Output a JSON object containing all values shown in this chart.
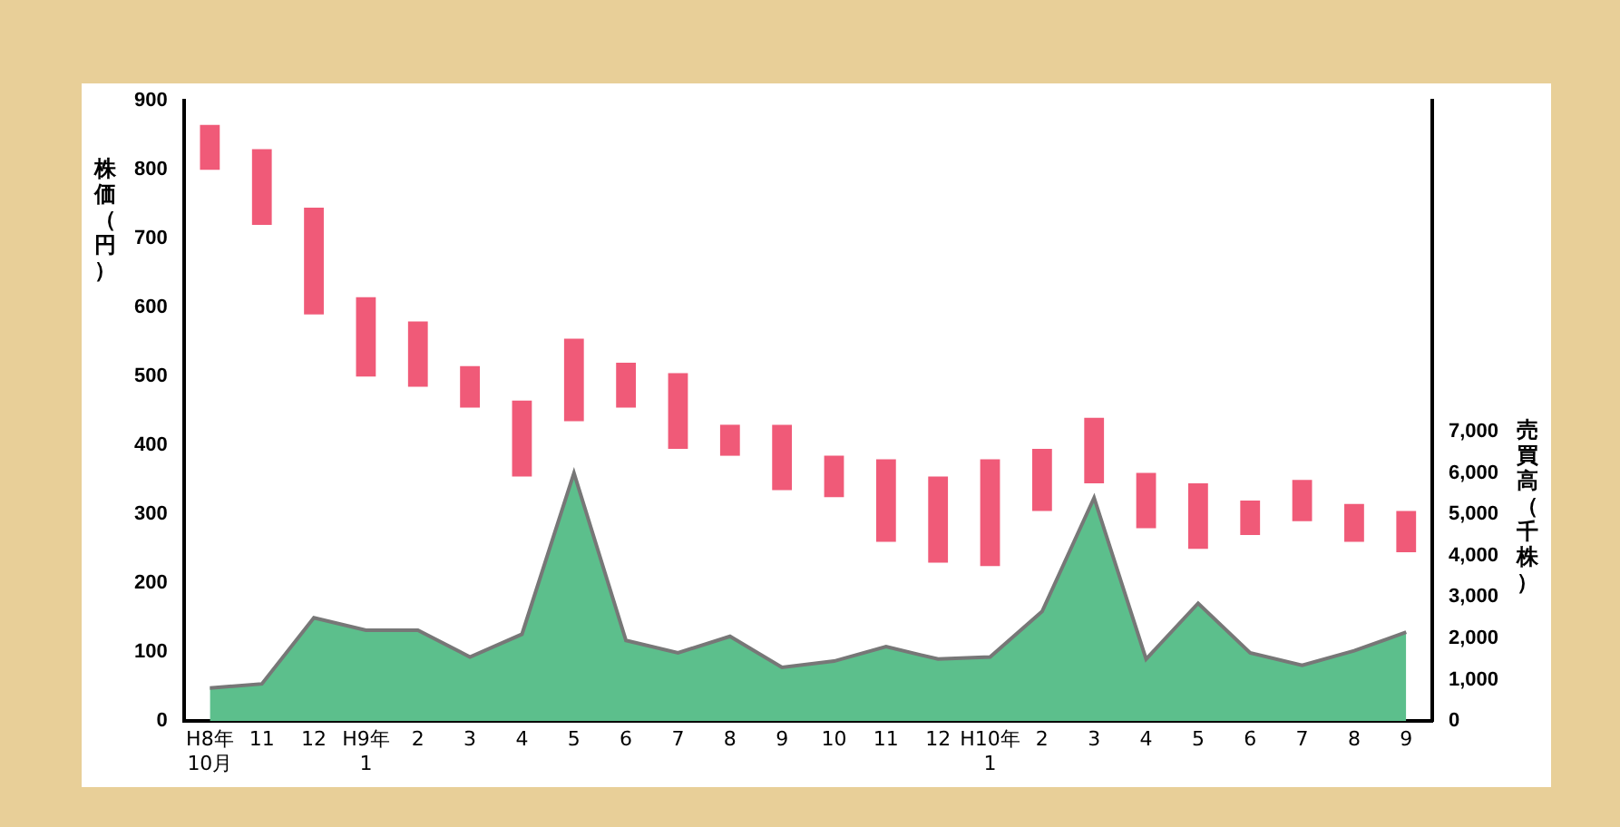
{
  "chart_data": {
    "type": "bar",
    "ylabel": "株価（円）",
    "y2label": "売買高（千株）",
    "categories": [
      "H8年\n10月",
      "11",
      "12",
      "H9年\n1",
      "2",
      "3",
      "4",
      "5",
      "6",
      "7",
      "8",
      "9",
      "10",
      "11",
      "12",
      "H10年\n1",
      "2",
      "3",
      "4",
      "5",
      "6",
      "7",
      "8",
      "9"
    ],
    "series": [
      {
        "color": "#f05a78",
        "base": [
          800,
          720,
          590,
          500,
          485,
          455,
          355,
          435,
          455,
          395,
          385,
          335,
          325,
          260,
          230,
          225,
          305,
          345,
          280,
          250,
          270,
          290,
          260,
          245
        ],
        "values": [
          65,
          110,
          155,
          115,
          95,
          60,
          110,
          120,
          65,
          110,
          45,
          95,
          60,
          120,
          125,
          155,
          90,
          95,
          80,
          95,
          50,
          60,
          55,
          60
        ]
      },
      {
        "type": "area",
        "axis": "y2",
        "color": "#5cbf8c",
        "values": [
          800,
          900,
          2500,
          2200,
          2200,
          1550,
          2100,
          6000,
          1950,
          1650,
          2050,
          1300,
          1450,
          1800,
          1500,
          1550,
          2650,
          5400,
          1500,
          2850,
          1650,
          1350,
          1700,
          2150
        ]
      }
    ],
    "ylim": [
      0,
      900
    ],
    "yticks": [
      0,
      100,
      200,
      300,
      400,
      500,
      600,
      700,
      800,
      900
    ],
    "y2lim": [
      0,
      15000
    ],
    "y2ticks": [
      0,
      {
        "value": 1000,
        "label": "1,000"
      },
      {
        "value": 2000,
        "label": "2,000"
      },
      {
        "value": 3000,
        "label": "3,000"
      },
      {
        "value": 4000,
        "label": "4,000"
      },
      {
        "value": 5000,
        "label": "5,000"
      },
      {
        "value": 6000,
        "label": "6,000"
      },
      {
        "value": 7000,
        "label": "7,000"
      }
    ],
    "grid": false,
    "legend": false
  }
}
